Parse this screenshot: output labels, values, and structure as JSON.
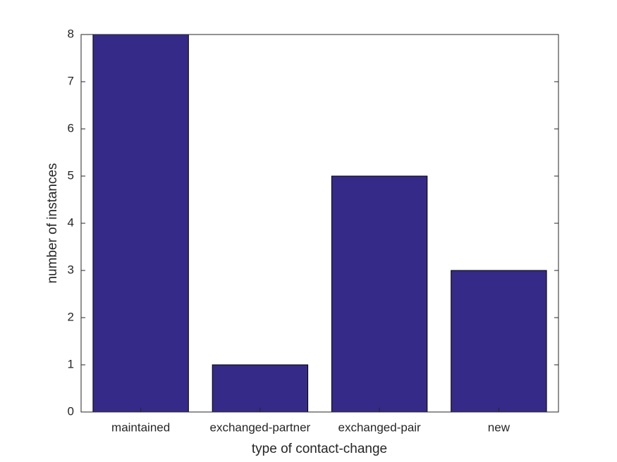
{
  "chart_data": {
    "type": "bar",
    "x_label": "type of contact-change",
    "y_label": "number of instances",
    "categories": [
      "maintained",
      "exchanged-partner",
      "exchanged-pair",
      "new"
    ],
    "values": [
      8,
      1,
      5,
      3
    ],
    "color": "#352a87",
    "ylim": [
      0,
      8
    ],
    "yticks": [
      0,
      1,
      2,
      3,
      4,
      5,
      6,
      7,
      8
    ],
    "grid": false
  }
}
